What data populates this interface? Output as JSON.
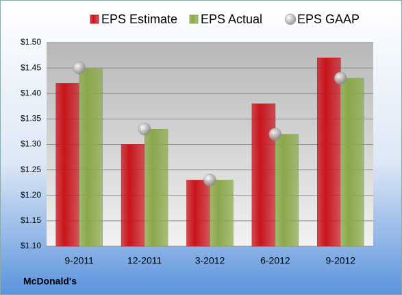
{
  "chart_data": {
    "type": "bar",
    "categories": [
      "9-2011",
      "12-2011",
      "3-2012",
      "6-2012",
      "9-2012"
    ],
    "series": [
      {
        "name": "EPS Estimate",
        "color": "#c8141c",
        "values": [
          1.42,
          1.3,
          1.23,
          1.38,
          1.47
        ]
      },
      {
        "name": "EPS Actual",
        "color": "#8aa84a",
        "values": [
          1.45,
          1.33,
          1.23,
          1.32,
          1.43
        ]
      },
      {
        "name": "EPS GAAP",
        "color": "#a8a8a8",
        "type": "scatter",
        "values": [
          1.45,
          1.33,
          1.23,
          1.32,
          1.43
        ]
      }
    ],
    "ylim": [
      1.1,
      1.5
    ],
    "yticks": [
      {
        "value": 1.1,
        "label": "$1.10"
      },
      {
        "value": 1.15,
        "label": "$1.15"
      },
      {
        "value": 1.2,
        "label": "$1.20"
      },
      {
        "value": 1.25,
        "label": "$1.25"
      },
      {
        "value": 1.3,
        "label": "$1.30"
      },
      {
        "value": 1.35,
        "label": "$1.35"
      },
      {
        "value": 1.4,
        "label": "$1.40"
      },
      {
        "value": 1.45,
        "label": "$1.45"
      },
      {
        "value": 1.5,
        "label": "$1.50"
      }
    ],
    "grid": true,
    "legend": "top",
    "company": "McDonald's"
  }
}
